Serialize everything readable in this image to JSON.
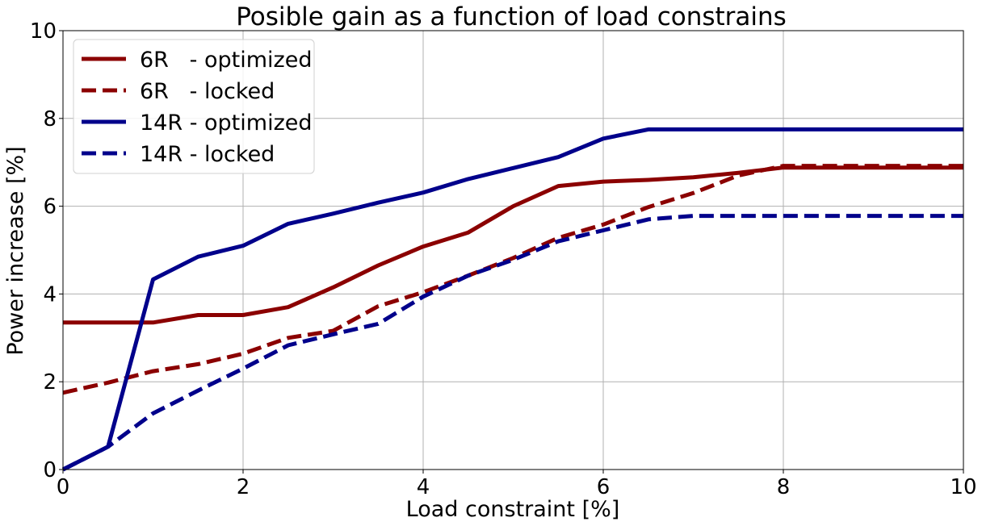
{
  "chart_data": {
    "type": "line",
    "title": "Posible gain as a function of load constrains",
    "xlabel": "Load constraint [%]",
    "ylabel": "Power increase [%]",
    "xlim": [
      0,
      10
    ],
    "ylim": [
      0,
      10
    ],
    "xticks": [
      0,
      2,
      4,
      6,
      8,
      10
    ],
    "yticks": [
      0,
      2,
      4,
      6,
      8,
      10
    ],
    "grid": true,
    "legend_position": "top-left",
    "x": [
      0,
      0.5,
      1,
      1.5,
      2,
      2.5,
      3,
      3.5,
      4,
      4.5,
      5,
      5.5,
      6,
      6.5,
      7,
      7.5,
      8,
      8.5,
      9,
      9.5,
      10
    ],
    "series": [
      {
        "name": "6R   - optimized",
        "color": "#8b0000",
        "line_style": "solid",
        "values": [
          3.35,
          3.35,
          3.35,
          3.52,
          3.52,
          3.7,
          4.15,
          4.65,
          5.08,
          5.4,
          6.0,
          6.46,
          6.56,
          6.6,
          6.66,
          6.76,
          6.88,
          6.88,
          6.88,
          6.88,
          6.88
        ]
      },
      {
        "name": "6R   - locked",
        "color": "#8b0000",
        "line_style": "dashed",
        "values": [
          1.75,
          1.98,
          2.24,
          2.4,
          2.64,
          3.0,
          3.16,
          3.72,
          4.04,
          4.42,
          4.82,
          5.28,
          5.58,
          5.98,
          6.3,
          6.7,
          6.92,
          6.92,
          6.92,
          6.92,
          6.92
        ]
      },
      {
        "name": "14R - optimized",
        "color": "#00008b",
        "line_style": "solid",
        "values": [
          0.0,
          0.52,
          4.33,
          4.85,
          5.1,
          5.6,
          5.83,
          6.08,
          6.31,
          6.62,
          6.87,
          7.12,
          7.54,
          7.75,
          7.75,
          7.75,
          7.75,
          7.75,
          7.75,
          7.75,
          7.75
        ]
      },
      {
        "name": "14R - locked",
        "color": "#00008b",
        "line_style": "dashed",
        "values": [
          0.0,
          0.52,
          1.28,
          1.8,
          2.3,
          2.83,
          3.08,
          3.32,
          3.94,
          4.42,
          4.78,
          5.2,
          5.45,
          5.7,
          5.78,
          5.78,
          5.78,
          5.78,
          5.78,
          5.78,
          5.78
        ]
      }
    ]
  }
}
